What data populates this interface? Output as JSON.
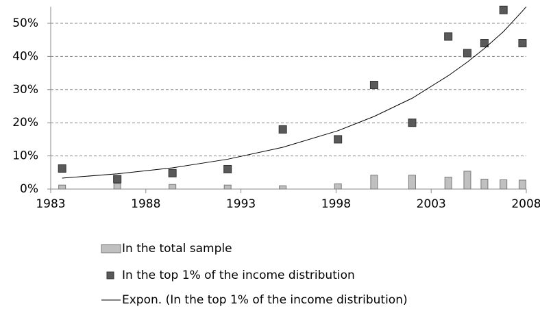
{
  "chart_data": {
    "type": "combo",
    "xlim": [
      1983,
      2008
    ],
    "xticks": [
      1983,
      1988,
      1993,
      1998,
      2003,
      2008
    ],
    "ylim": [
      0,
      55
    ],
    "yticks": [
      {
        "value": 0,
        "label": "0%"
      },
      {
        "value": 10,
        "label": "10%"
      },
      {
        "value": 20,
        "label": "20%"
      },
      {
        "value": 30,
        "label": "30%"
      },
      {
        "value": 40,
        "label": "40%"
      },
      {
        "value": 50,
        "label": "50%"
      }
    ],
    "grid": true,
    "series": [
      {
        "name": "In the total sample",
        "type": "bar",
        "color": "#c0c0c0",
        "x": [
          1983.6,
          1986.5,
          1989.4,
          1992.3,
          1995.2,
          1998.1,
          2000,
          2002,
          2003.9,
          2004.9,
          2005.8,
          2006.8,
          2007.8
        ],
        "values": [
          1.2,
          1.7,
          1.4,
          1.2,
          1,
          1.6,
          4.2,
          4.2,
          3.6,
          5.4,
          3,
          2.8,
          2.7
        ]
      },
      {
        "name": "In the top 1% of the income distribution",
        "type": "scatter",
        "color": "#595959",
        "x": [
          1983.6,
          1986.5,
          1989.4,
          1992.3,
          1995.2,
          1998.1,
          2000,
          2002,
          2003.9,
          2004.9,
          2005.8,
          2006.8,
          2007.8
        ],
        "values": [
          6.2,
          3,
          4.8,
          6,
          18,
          15,
          31.4,
          20,
          46,
          41,
          44,
          54,
          44
        ]
      },
      {
        "name": "Expon. (In the top 1% of the income distribution)",
        "type": "line",
        "color": "#000000",
        "x": [
          1983.6,
          1986.5,
          1989.4,
          1992.3,
          1995.2,
          1998.1,
          2000,
          2002,
          2003.9,
          2004.9,
          2005.8,
          2006.8,
          2007.8,
          2008
        ],
        "values": [
          3.3,
          4.6,
          6.4,
          9,
          12.6,
          17.6,
          21.9,
          27.4,
          34.2,
          38.3,
          42.4,
          47.5,
          53.7,
          55
        ]
      }
    ]
  }
}
